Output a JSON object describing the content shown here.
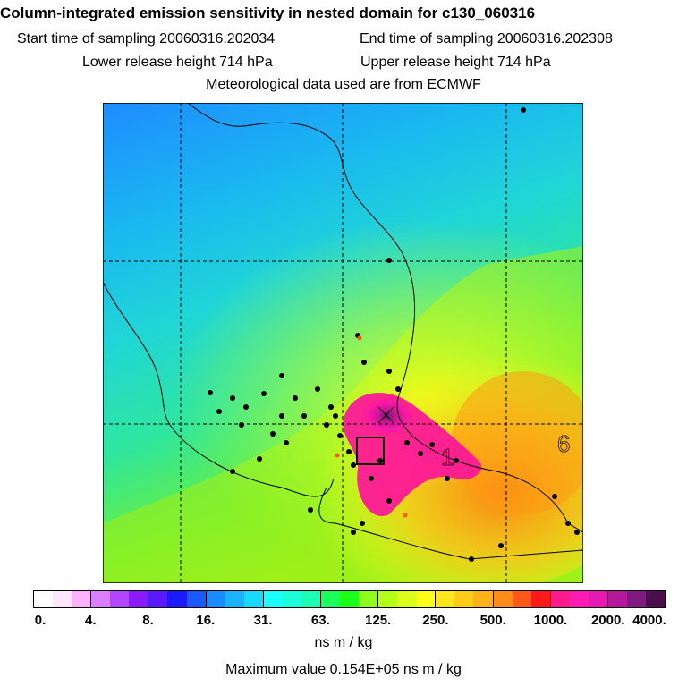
{
  "header": {
    "title": "Column-integrated emission sensitivity in nested domain for c130_060316",
    "start_label": "Start time of sampling 20060316.202034",
    "end_label": "End time of sampling 20060316.202308",
    "lower_label": "Lower release height  714 hPa",
    "upper_label": "Upper release height  714 hPa",
    "met_label": "Meteorological data used are from ECMWF"
  },
  "map": {
    "labels": [
      "1",
      "6"
    ],
    "colors": {
      "low": "#1aa0ff",
      "cyan": "#13e6e6",
      "green": "#11e27a",
      "yellow": "#e6ff1a",
      "orange": "#ffb014",
      "magenta": "#ff149a",
      "purple": "#7a1a8a"
    }
  },
  "legend": {
    "colors": [
      "#ffffff",
      "#ffe6ff",
      "#ffb3ff",
      "#d97fff",
      "#b347ff",
      "#8c1aff",
      "#5a1aff",
      "#1a1aff",
      "#1a59ff",
      "#1a8cff",
      "#1ab3ff",
      "#1ad9ff",
      "#1affff",
      "#1affd9",
      "#1affb3",
      "#1aff59",
      "#1aff1a",
      "#8cff1a",
      "#b3ff1a",
      "#d9ff1a",
      "#ffff1a",
      "#ffe61a",
      "#ffcc1a",
      "#ffb31a",
      "#ff8c1a",
      "#ff591a",
      "#ff1a1a",
      "#ff1a8c",
      "#ff1ab3",
      "#e61ab3",
      "#b31a99",
      "#801a80",
      "#4d0d4d"
    ],
    "ticks": [
      "0.",
      "4.",
      "8.",
      "16.",
      "31.",
      "63.",
      "125.",
      "250.",
      "500.",
      "1000.",
      "2000.",
      "4000."
    ],
    "units": "ns m / kg",
    "max_label": "Maximum value  0.154E+05 ns m / kg"
  }
}
